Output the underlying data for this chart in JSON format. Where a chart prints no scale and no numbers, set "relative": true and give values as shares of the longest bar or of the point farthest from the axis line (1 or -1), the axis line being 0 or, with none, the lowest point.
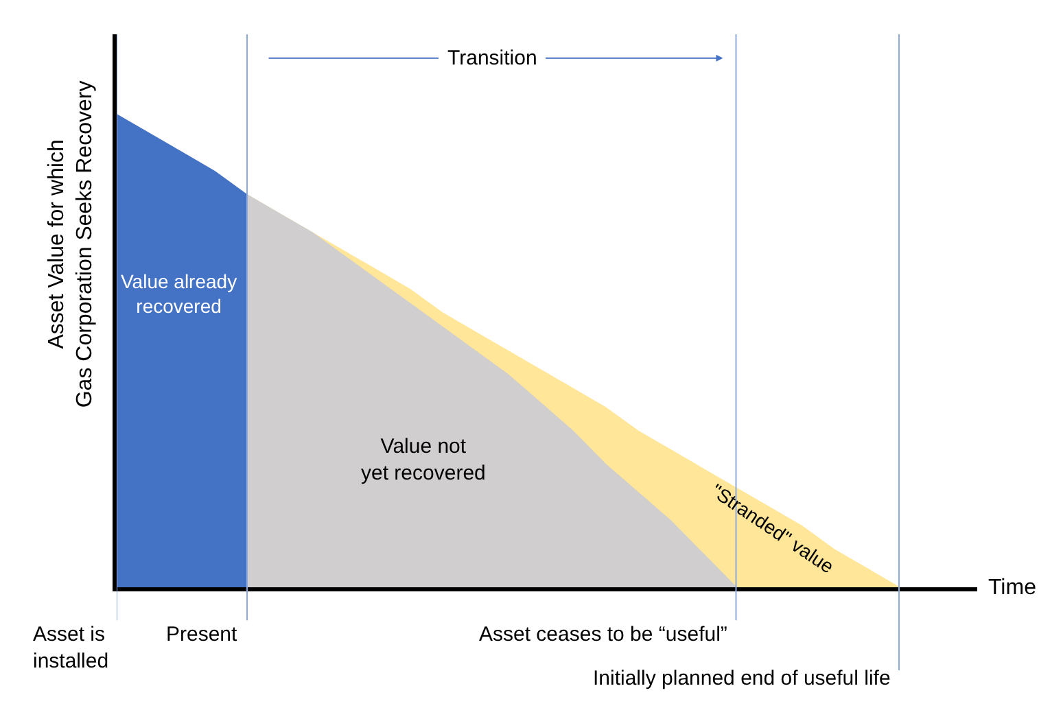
{
  "chart_data": {
    "type": "area",
    "relative": true,
    "xlabel": "Time",
    "ylabel": "Asset Value for which Gas Corporation Seeks Recovery",
    "categories": [
      null,
      null,
      null,
      null,
      null,
      null,
      null,
      null,
      null,
      null,
      null,
      null,
      null,
      null,
      null,
      null,
      null,
      null,
      null,
      null,
      null,
      null,
      null,
      null,
      null,
      null,
      null
    ],
    "series": [
      {
        "name": "\"Stranded\" value",
        "color": "#ffe699",
        "values": [
          null,
          null,
          null,
          null,
          0.83,
          0.79,
          0.75,
          0.71,
          0.67,
          0.63,
          0.58,
          0.54,
          0.5,
          0.46,
          0.42,
          0.38,
          0.33,
          0.29,
          0.25,
          0.21,
          0.17,
          0.13,
          0.08,
          0.04,
          0,
          null,
          null
        ]
      },
      {
        "name": "Value not yet recovered",
        "color": "#d0cece",
        "values": [
          null,
          null,
          null,
          null,
          0.83,
          0.79,
          0.75,
          0.7,
          0.65,
          0.6,
          0.55,
          0.5,
          0.45,
          0.39,
          0.33,
          0.26,
          0.2,
          0.14,
          0.07,
          0,
          null,
          null,
          null,
          null,
          null,
          null,
          null
        ]
      },
      {
        "name": "Value already recovered",
        "color": "#4472c4",
        "values": [
          1,
          0.96,
          0.92,
          0.88,
          0.83,
          null,
          null,
          null,
          null,
          null,
          null,
          null,
          null,
          null,
          null,
          null,
          null,
          null,
          null,
          null,
          null,
          null,
          null,
          null,
          null,
          null,
          null
        ]
      }
    ],
    "grid": "x",
    "annotations": [
      "Asset is installed",
      "Present",
      "Asset ceases to be “useful”",
      "Initially planned end of useful life",
      "Transition"
    ]
  }
}
